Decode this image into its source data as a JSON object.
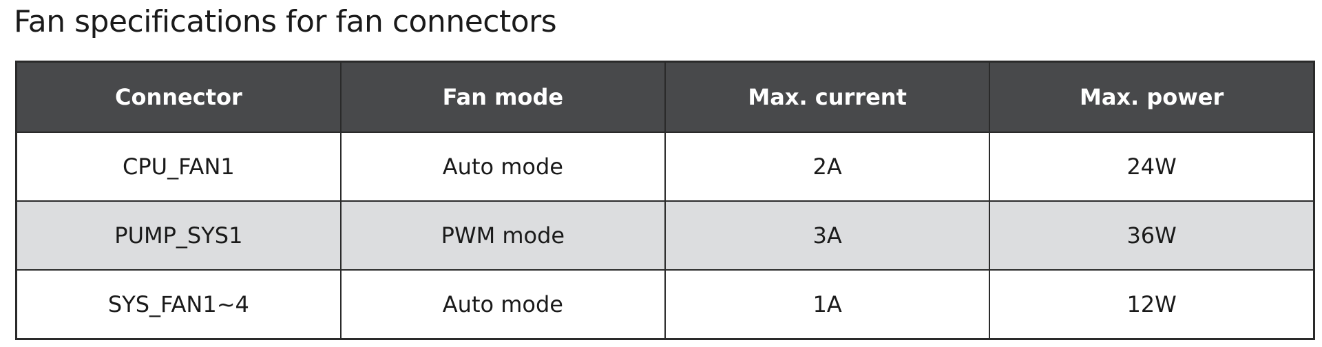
{
  "title": "Fan specifications for fan connectors",
  "table": {
    "headers": [
      "Connector",
      "Fan mode",
      "Max. current",
      "Max. power"
    ],
    "rows": [
      [
        "CPU_FAN1",
        "Auto mode",
        "2A",
        "24W"
      ],
      [
        "PUMP_SYS1",
        "PWM mode",
        "3A",
        "36W"
      ],
      [
        "SYS_FAN1~4",
        "Auto mode",
        "1A",
        "12W"
      ]
    ]
  },
  "colors": {
    "header_bg": "#48494b",
    "alt_row_bg": "#dcdddf"
  }
}
